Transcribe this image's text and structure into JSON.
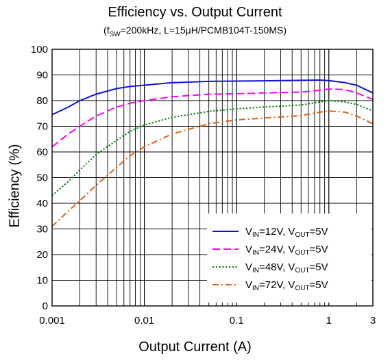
{
  "chart_data": {
    "type": "line",
    "title": "Efficiency vs. Output Current",
    "subtitle": {
      "f": "f",
      "sw": "SW",
      "rest": "=200kHz, L=15μH/PCMB104T-150MS)",
      "open": "("
    },
    "xlabel": "Output Current (A)",
    "ylabel": "Efficiency (%)",
    "x_scale": "log",
    "xlim": [
      0.001,
      3
    ],
    "ylim": [
      0,
      100
    ],
    "x_ticks": [
      {
        "value": 0.001,
        "label": "0.001"
      },
      {
        "value": 0.01,
        "label": "0.01"
      },
      {
        "value": 0.1,
        "label": "0.1"
      },
      {
        "value": 1,
        "label": "1"
      },
      {
        "value": 3,
        "label": "3"
      }
    ],
    "y_ticks": [
      0,
      10,
      20,
      30,
      40,
      50,
      60,
      70,
      80,
      90,
      100
    ],
    "grid": true,
    "legend_position": "bottom-right",
    "series": [
      {
        "name": "VIN=12V, VOUT=5V",
        "legend": {
          "v1": "V",
          "s1": "IN",
          "t1": "=12V, V",
          "s2": "OUT",
          "t2": "=5V"
        },
        "color": "#1010e0",
        "dash": "solid",
        "x": [
          0.001,
          0.0015,
          0.002,
          0.003,
          0.005,
          0.007,
          0.01,
          0.02,
          0.05,
          0.1,
          0.2,
          0.5,
          0.8,
          1,
          1.5,
          2,
          3
        ],
        "y": [
          74.5,
          77.5,
          80,
          82.5,
          84.7,
          85.5,
          86,
          87,
          87.5,
          87.6,
          87.7,
          87.9,
          88,
          87.8,
          87,
          86,
          83
        ]
      },
      {
        "name": "VIN=24V, VOUT=5V",
        "legend": {
          "v1": "V",
          "s1": "IN",
          "t1": "=24V, V",
          "s2": "OUT",
          "t2": "=5V"
        },
        "color": "#ff00ff",
        "dash": "long-dash",
        "x": [
          0.001,
          0.0015,
          0.002,
          0.003,
          0.005,
          0.007,
          0.01,
          0.02,
          0.05,
          0.1,
          0.2,
          0.5,
          0.8,
          1,
          1.5,
          2,
          3
        ],
        "y": [
          62,
          67,
          70,
          74,
          77.5,
          79,
          80,
          81.5,
          82.5,
          82.7,
          83,
          83.3,
          84,
          84.5,
          84.3,
          83,
          80.5
        ]
      },
      {
        "name": "VIN=48V, VOUT=5V",
        "legend": {
          "v1": "V",
          "s1": "IN",
          "t1": "=48V, V",
          "s2": "OUT",
          "t2": "=5V"
        },
        "color": "#008000",
        "dash": "dotted",
        "x": [
          0.001,
          0.0015,
          0.002,
          0.003,
          0.005,
          0.007,
          0.01,
          0.02,
          0.05,
          0.1,
          0.2,
          0.5,
          0.8,
          1,
          1.5,
          2,
          3
        ],
        "y": [
          43,
          48.5,
          53,
          59,
          64.5,
          68,
          70.5,
          73.5,
          75.8,
          76.8,
          77.5,
          78.3,
          79.5,
          80,
          79.5,
          78.5,
          76
        ]
      },
      {
        "name": "VIN=72V, VOUT=5V",
        "legend": {
          "v1": "V",
          "s1": "IN",
          "t1": "=72V, V",
          "s2": "OUT",
          "t2": "=5V"
        },
        "color": "#e06010",
        "dash": "dash-dot",
        "x": [
          0.001,
          0.0015,
          0.002,
          0.003,
          0.005,
          0.007,
          0.01,
          0.02,
          0.05,
          0.1,
          0.2,
          0.5,
          0.8,
          1,
          1.5,
          2,
          3
        ],
        "y": [
          31,
          37,
          41,
          47,
          54,
          58.5,
          62,
          67,
          71,
          72.5,
          73.2,
          74.2,
          75.5,
          76,
          75.5,
          74,
          71
        ]
      }
    ]
  }
}
